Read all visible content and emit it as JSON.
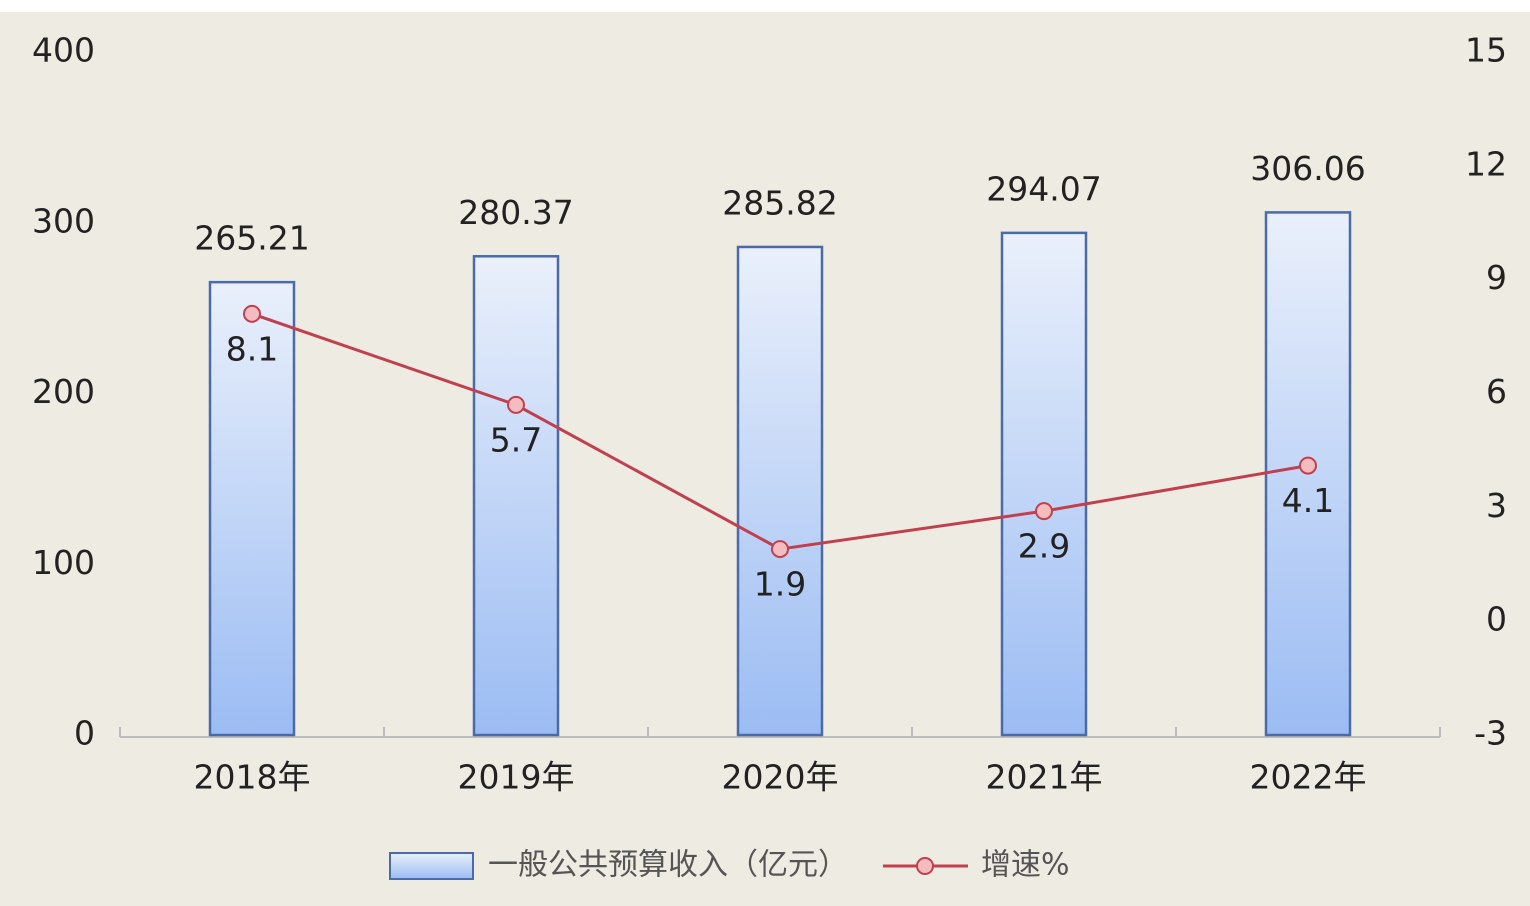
{
  "chart_data": {
    "type": "bar-line",
    "categories": [
      "2018年",
      "2019年",
      "2020年",
      "2021年",
      "2022年"
    ],
    "series": [
      {
        "name": "一般公共预算收入（亿元）",
        "type": "bar",
        "color": "#4a6aaa",
        "values": [
          265.21,
          280.37,
          285.82,
          294.07,
          306.06
        ]
      },
      {
        "name": "增速%",
        "type": "line",
        "axis": "y2",
        "color": "#c0404f",
        "values": [
          8.1,
          5.7,
          1.9,
          2.9,
          4.1
        ]
      }
    ],
    "ylim": [
      0,
      400
    ],
    "yticks": [
      0,
      100,
      200,
      300,
      400
    ],
    "y2lim": [
      -3,
      15
    ],
    "y2ticks": [
      -3,
      0,
      3,
      6,
      9,
      12,
      15
    ],
    "legend": "bottom"
  }
}
